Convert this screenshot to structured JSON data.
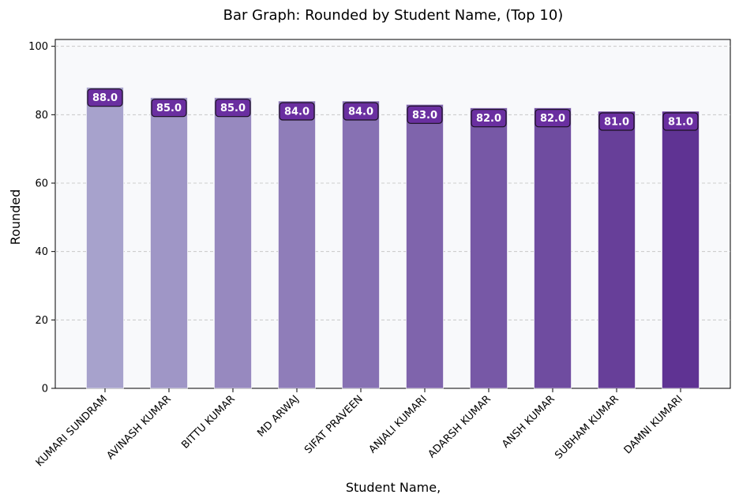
{
  "chart_data": {
    "type": "bar",
    "title": "Bar Graph: Rounded by Student Name, (Top 10)",
    "xlabel": "Student Name,",
    "ylabel": "Rounded",
    "categories": [
      "KUMARI SUNDRAM",
      "AVINASH KUMAR",
      "BITTU KUMAR",
      "MD ARWAJ",
      "SIFAT PRAVEEN",
      "ANJALI KUMARI",
      "ADARSH KUMAR",
      "ANSH KUMAR",
      "SUBHAM KUMAR",
      "DAMNI KUMARI"
    ],
    "values": [
      88.0,
      85.0,
      85.0,
      84.0,
      84.0,
      83.0,
      82.0,
      82.0,
      81.0,
      81.0
    ],
    "data_labels": [
      "88.0",
      "85.0",
      "85.0",
      "84.0",
      "84.0",
      "83.0",
      "82.0",
      "82.0",
      "81.0",
      "81.0"
    ],
    "ylim": [
      0,
      102
    ],
    "yticks": [
      0,
      20,
      40,
      60,
      80,
      100
    ],
    "grid": "y-dashed",
    "legend": "none",
    "colors": {
      "bar_start": "#a7a2cc",
      "bar_end": "#5f3393",
      "label_box": "#6a2fa0",
      "plot_bg": "#f8f9fb",
      "grid": "#c0c0c0"
    }
  }
}
